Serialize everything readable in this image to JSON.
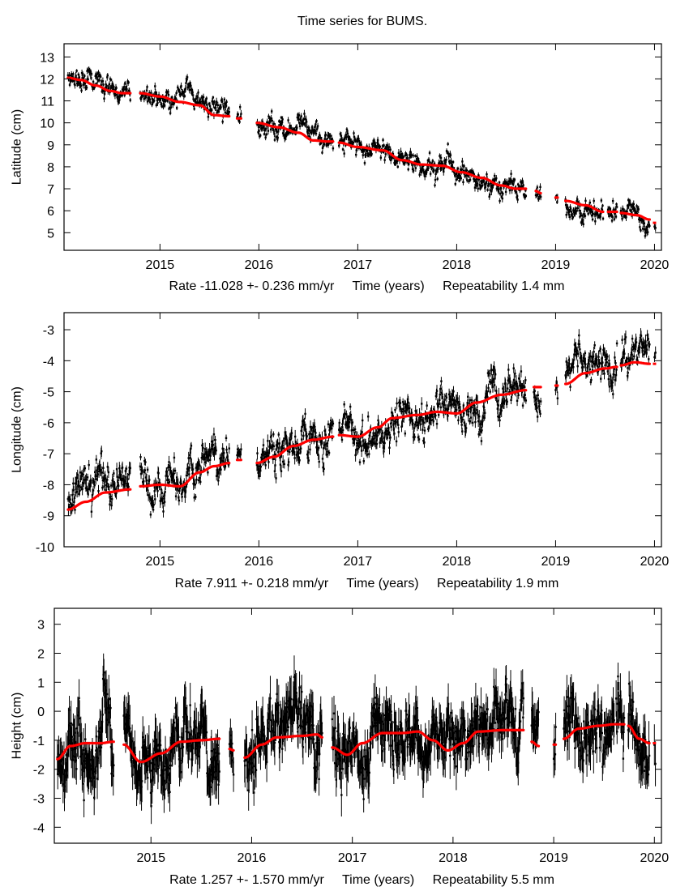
{
  "chart_data": {
    "title": "Time series for BUMS.",
    "type": "scatter",
    "colors": {
      "data": "#000000",
      "model": "#ff0000",
      "frame": "#000000"
    },
    "panels": [
      {
        "type": "scatter",
        "component": "latitude",
        "ylabel": "Latitude (cm)",
        "xlabel": "Time (years)",
        "rate_text": "Rate -11.028 +- 0.236 mm/yr",
        "repeat_text": "Repeatability 1.4 mm",
        "xlim": [
          2014.03,
          2020.07
        ],
        "ylim": [
          4.2,
          13.6
        ],
        "xticks": [
          2015,
          2016,
          2017,
          2018,
          2019,
          2020
        ],
        "yticks": [
          5,
          6,
          7,
          8,
          9,
          10,
          11,
          12,
          13
        ],
        "segments": [
          {
            "x": [
              2014.07,
              2014.2,
              2014.35,
              2014.5,
              2014.62,
              2014.7
            ],
            "y": [
              12.05,
              11.95,
              11.7,
              11.45,
              11.35,
              11.35
            ]
          },
          {
            "x": [
              2014.8,
              2015.0,
              2015.2,
              2015.4,
              2015.55,
              2015.7
            ],
            "y": [
              11.35,
              11.2,
              10.95,
              10.8,
              10.35,
              10.3
            ]
          },
          {
            "x": [
              2015.78,
              2015.82
            ],
            "y": [
              10.2,
              10.2
            ]
          },
          {
            "x": [
              2015.98,
              2016.2,
              2016.4,
              2016.55,
              2016.7,
              2016.75
            ],
            "y": [
              10.0,
              9.8,
              9.55,
              9.2,
              9.15,
              9.15
            ]
          },
          {
            "x": [
              2016.81,
              2017.0,
              2017.25,
              2017.45,
              2017.65,
              2017.85
            ],
            "y": [
              9.1,
              8.9,
              8.75,
              8.3,
              8.1,
              8.05
            ]
          },
          {
            "x": [
              2017.85,
              2018.05,
              2018.25,
              2018.45,
              2018.6,
              2018.7
            ],
            "y": [
              8.05,
              7.75,
              7.5,
              7.15,
              7.0,
              7.0
            ]
          },
          {
            "x": [
              2018.8,
              2018.85
            ],
            "y": [
              6.9,
              6.8
            ]
          },
          {
            "x": [
              2019.0,
              2019.02
            ],
            "y": [
              6.6,
              6.6
            ]
          },
          {
            "x": [
              2019.1,
              2019.3,
              2019.48
            ],
            "y": [
              6.45,
              6.25,
              5.95
            ]
          },
          {
            "x": [
              2019.53,
              2019.62
            ],
            "y": [
              5.95,
              5.95
            ]
          },
          {
            "x": [
              2019.66,
              2019.82,
              2019.95
            ],
            "y": [
              5.9,
              5.8,
              5.6
            ]
          },
          {
            "x": [
              2020.0
            ],
            "y": [
              5.45
            ]
          }
        ],
        "scatter_cm": 0.35,
        "error_cm": 0.12
      },
      {
        "type": "scatter",
        "component": "longitude",
        "ylabel": "Longitude (cm)",
        "xlabel": "Time (years)",
        "rate_text": "Rate 7.911 +- 0.218 mm/yr",
        "repeat_text": "Repeatability 1.9 mm",
        "xlim": [
          2014.03,
          2020.07
        ],
        "ylim": [
          -10,
          -2.45
        ],
        "xticks": [
          2015,
          2016,
          2017,
          2018,
          2019,
          2020
        ],
        "yticks": [
          -10,
          -9,
          -8,
          -7,
          -6,
          -5,
          -4,
          -3
        ],
        "segments": [
          {
            "x": [
              2014.07,
              2014.25,
              2014.45,
              2014.7
            ],
            "y": [
              -8.8,
              -8.55,
              -8.25,
              -8.15
            ],
            "offset": 0.25
          },
          {
            "x": [
              2014.8,
              2015.0,
              2015.2,
              2015.4,
              2015.55,
              2015.7
            ],
            "y": [
              -8.05,
              -8.0,
              -8.05,
              -7.6,
              -7.4,
              -7.3
            ],
            "offset": 0.3
          },
          {
            "x": [
              2015.78,
              2015.82
            ],
            "y": [
              -7.2,
              -7.2
            ],
            "offset": 0.0
          },
          {
            "x": [
              2015.98,
              2016.15,
              2016.35,
              2016.55,
              2016.75
            ],
            "y": [
              -7.3,
              -7.1,
              -6.75,
              -6.55,
              -6.45
            ],
            "offset": 0.0
          },
          {
            "x": [
              2016.81,
              2017.0,
              2017.2,
              2017.35,
              2017.6,
              2017.8
            ],
            "y": [
              -6.4,
              -6.45,
              -6.15,
              -5.85,
              -5.75,
              -5.65
            ],
            "offset": 0.0
          },
          {
            "x": [
              2017.8,
              2018.0,
              2018.2,
              2018.45,
              2018.7
            ],
            "y": [
              -5.65,
              -5.7,
              -5.35,
              -5.1,
              -4.95
            ],
            "offset": 0.0
          },
          {
            "x": [
              2018.78,
              2018.85
            ],
            "y": [
              -4.85,
              -4.85
            ],
            "offset": 0.0
          },
          {
            "x": [
              2019.0,
              2019.02
            ],
            "y": [
              -4.8,
              -4.8
            ],
            "offset": 0.0
          },
          {
            "x": [
              2019.1,
              2019.3,
              2019.5,
              2019.62
            ],
            "y": [
              -4.75,
              -4.4,
              -4.25,
              -4.2
            ],
            "offset": 0.25
          },
          {
            "x": [
              2019.66,
              2019.8,
              2019.95
            ],
            "y": [
              -4.15,
              -4.05,
              -4.1
            ],
            "offset": 0.25
          },
          {
            "x": [
              2020.0
            ],
            "y": [
              -4.1
            ],
            "offset": 0.3
          }
        ],
        "scatter_cm": 0.45,
        "error_cm": 0.15
      },
      {
        "type": "scatter",
        "component": "height",
        "ylabel": "Height (cm)",
        "xlabel": "Time (years)",
        "rate_text": "Rate 1.257 +- 1.570 mm/yr",
        "repeat_text": "Repeatability 5.5 mm",
        "xlim": [
          2014.04,
          2020.07
        ],
        "ylim": [
          -4.55,
          3.55
        ],
        "xticks": [
          2015,
          2016,
          2017,
          2018,
          2019,
          2020
        ],
        "yticks": [
          -4,
          -3,
          -2,
          -1,
          0,
          1,
          2,
          3
        ],
        "segments": [
          {
            "x": [
              2014.07,
              2014.2,
              2014.35,
              2014.5,
              2014.63
            ],
            "y": [
              -1.65,
              -1.2,
              -1.1,
              -1.1,
              -1.05
            ]
          },
          {
            "x": [
              2014.73,
              2014.9,
              2015.1,
              2015.3,
              2015.5,
              2015.68
            ],
            "y": [
              -1.15,
              -1.75,
              -1.45,
              -1.05,
              -1.0,
              -0.95
            ]
          },
          {
            "x": [
              2015.78,
              2015.82
            ],
            "y": [
              -1.3,
              -1.35
            ]
          },
          {
            "x": [
              2015.93,
              2016.1,
              2016.25,
              2016.5,
              2016.65,
              2016.7
            ],
            "y": [
              -1.6,
              -1.15,
              -0.9,
              -0.85,
              -0.8,
              -0.9
            ]
          },
          {
            "x": [
              2016.8,
              2016.95,
              2017.1,
              2017.3,
              2017.5,
              2017.65
            ],
            "y": [
              -1.25,
              -1.5,
              -1.1,
              -0.75,
              -0.75,
              -0.7
            ]
          },
          {
            "x": [
              2017.65,
              2017.8,
              2017.95,
              2018.1,
              2018.25,
              2018.5,
              2018.7
            ],
            "y": [
              -0.7,
              -1.0,
              -1.35,
              -1.1,
              -0.7,
              -0.65,
              -0.65
            ]
          },
          {
            "x": [
              2018.78,
              2018.85
            ],
            "y": [
              -1.05,
              -1.2
            ]
          },
          {
            "x": [
              2019.0,
              2019.02
            ],
            "y": [
              -1.15,
              -1.15
            ]
          },
          {
            "x": [
              2019.1,
              2019.25,
              2019.45,
              2019.6
            ],
            "y": [
              -0.95,
              -0.6,
              -0.5,
              -0.45
            ]
          },
          {
            "x": [
              2019.62,
              2019.7
            ],
            "y": [
              -0.45,
              -0.45
            ]
          },
          {
            "x": [
              2019.74,
              2019.85,
              2019.95
            ],
            "y": [
              -0.5,
              -0.95,
              -1.1
            ]
          },
          {
            "x": [
              2020.0
            ],
            "y": [
              -1.1
            ]
          }
        ],
        "scatter_cm": 0.75,
        "error_cm": 0.55
      }
    ]
  }
}
